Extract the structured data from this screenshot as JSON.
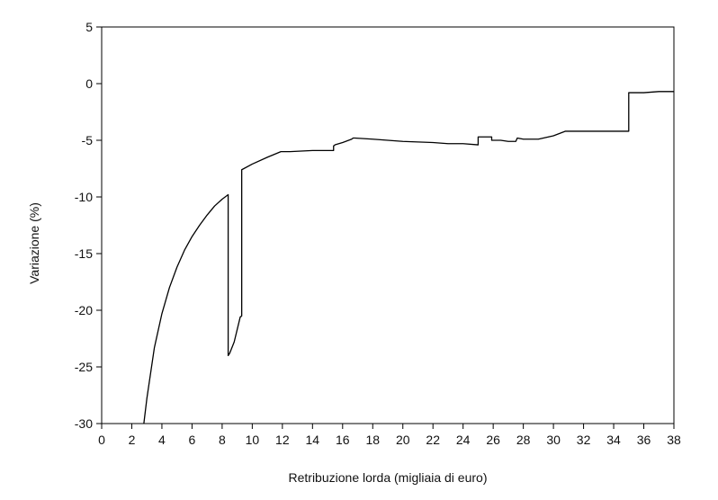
{
  "chart_data": {
    "type": "line",
    "title": "",
    "xlabel": "Retribuzione lorda (migliaia di euro)",
    "ylabel": "Variazione (%)",
    "xlim": [
      0,
      38
    ],
    "ylim": [
      -30,
      5
    ],
    "xticks": [
      0,
      2,
      4,
      6,
      8,
      10,
      12,
      14,
      16,
      18,
      20,
      22,
      24,
      26,
      28,
      30,
      32,
      34,
      36,
      38
    ],
    "yticks": [
      5,
      0,
      -5,
      -10,
      -15,
      -20,
      -25,
      -30
    ],
    "grid": false,
    "legend": "none",
    "line_color": "#000000",
    "series": [
      {
        "x": [
          2.8,
          3.0,
          3.5,
          4.0,
          4.5,
          5.0,
          5.5,
          6.0,
          6.5,
          7.0,
          7.5,
          8.0,
          8.4,
          8.4,
          8.5,
          8.8,
          9.2,
          9.3,
          9.3,
          10.0,
          11.0,
          11.9,
          12.5,
          14.0,
          15.4,
          15.4,
          15.5,
          16.0,
          16.6,
          16.7,
          16.8,
          18.0,
          20.0,
          22.0,
          23.0,
          24.0,
          25.0,
          25.0,
          25.9,
          25.9,
          26.5,
          27.0,
          27.5,
          27.6,
          27.6,
          28.0,
          29.0,
          30.0,
          30.8,
          31.0,
          32.0,
          33.0,
          34.0,
          35.0,
          35.0,
          36.0,
          37.0,
          38.0
        ],
        "y": [
          -30.0,
          -27.8,
          -23.3,
          -20.3,
          -18.0,
          -16.2,
          -14.7,
          -13.5,
          -12.5,
          -11.6,
          -10.8,
          -10.2,
          -9.8,
          -24.0,
          -23.8,
          -22.8,
          -20.6,
          -20.5,
          -7.6,
          -7.1,
          -6.5,
          -6.0,
          -6.0,
          -5.9,
          -5.9,
          -5.5,
          -5.4,
          -5.2,
          -4.9,
          -4.8,
          -4.8,
          -4.9,
          -5.1,
          -5.2,
          -5.3,
          -5.3,
          -5.4,
          -4.7,
          -4.7,
          -5.0,
          -5.0,
          -5.1,
          -5.1,
          -4.8,
          -4.8,
          -4.9,
          -4.9,
          -4.6,
          -4.2,
          -4.2,
          -4.2,
          -4.2,
          -4.2,
          -4.2,
          -0.8,
          -0.8,
          -0.7,
          -0.7
        ]
      }
    ]
  }
}
